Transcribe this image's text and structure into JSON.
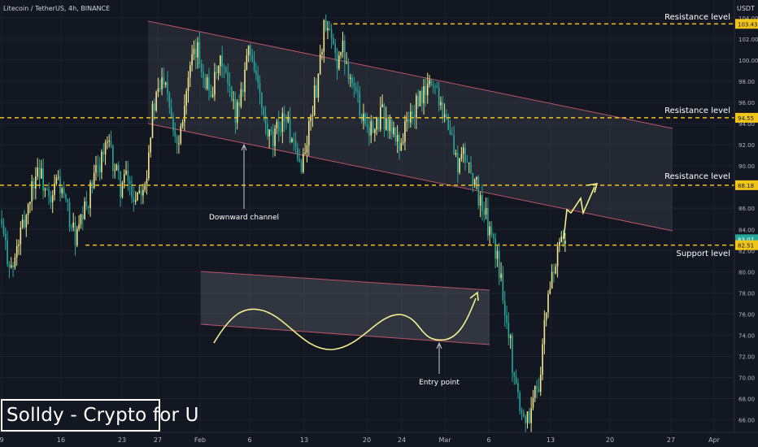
{
  "chart_data": {
    "type": "candlestick",
    "symbol_title": "Litecoin / TetherUS, 4h, BINANCE",
    "quote_currency": "USDT",
    "x_tick_labels": [
      "9",
      "16",
      "23",
      "27",
      "Feb",
      "6",
      "13",
      "20",
      "24",
      "Mar",
      "6",
      "13",
      "20",
      "27",
      "Apr"
    ],
    "y_tick_labels": [
      "66.00",
      "68.00",
      "70.00",
      "72.00",
      "74.00",
      "76.00",
      "78.00",
      "80.00",
      "82.00",
      "84.00",
      "86.00",
      "88.00",
      "90.00",
      "92.00",
      "94.00",
      "96.00",
      "98.00",
      "100.00",
      "102.00",
      "104.00"
    ],
    "ylim": [
      65.2,
      104.3
    ],
    "price_markers": [
      {
        "label": "103.43",
        "value": 103.43,
        "color": "#f0c419",
        "text_color": "#131722"
      },
      {
        "label": "94.55",
        "value": 94.55,
        "color": "#f0c419",
        "text_color": "#131722"
      },
      {
        "label": "88.18",
        "value": 88.18,
        "color": "#f0c419",
        "text_color": "#131722"
      },
      {
        "label": "83.07",
        "value": 83.07,
        "color": "#26a69a",
        "text_color": "#ffffff"
      },
      {
        "label": "82.51",
        "value": 82.51,
        "color": "#f0c419",
        "text_color": "#131722"
      }
    ],
    "levels": [
      {
        "label": "Resistance level",
        "value": 103.43
      },
      {
        "label": "Resistance level",
        "value": 94.55
      },
      {
        "label": "Resistance level",
        "value": 88.18
      },
      {
        "label": "Support level",
        "value": 82.51
      }
    ],
    "annotations": [
      {
        "label": "Downward channel"
      },
      {
        "label": "Entry point"
      }
    ],
    "price_path": [
      85,
      82,
      80,
      83,
      85,
      88,
      90,
      88,
      86,
      89,
      87,
      85,
      83,
      85,
      87,
      89,
      91,
      92,
      90,
      88,
      89,
      87,
      88,
      89,
      95,
      97,
      99,
      95,
      92,
      96,
      99,
      101,
      99,
      97,
      98,
      100,
      97,
      95,
      97,
      101,
      100,
      96,
      93,
      92,
      94,
      95,
      92,
      90,
      91,
      95,
      98,
      103,
      102,
      100,
      101,
      99,
      97,
      95,
      94,
      93,
      95,
      94,
      93,
      92,
      94,
      95,
      96,
      97,
      98,
      97,
      95,
      93,
      90,
      91,
      90,
      88,
      86,
      84,
      82,
      79,
      75,
      70,
      67,
      66,
      68,
      70,
      76,
      80,
      82,
      83
    ],
    "colors": {
      "up": "#f0e68c",
      "down": "#26a69a",
      "level": "#f0c419",
      "channel_line": "#b85468",
      "channel_fill": "#3a3e4a",
      "arrow": "#f0f08c"
    }
  },
  "watermark": {
    "text": "Solldy - Crypto for U"
  }
}
